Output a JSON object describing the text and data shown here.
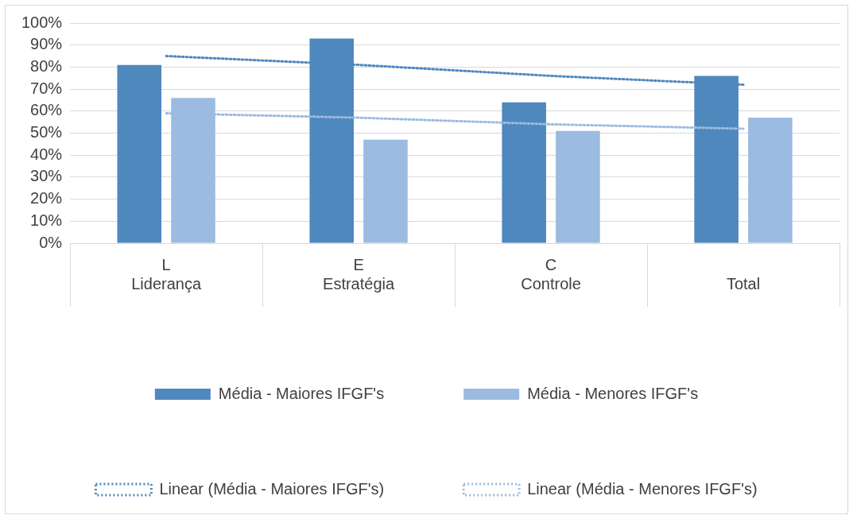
{
  "chart_data": {
    "type": "bar",
    "categories": [
      "L\nLiderança",
      "E\nEstratégia",
      "C\nControle",
      "\nTotal"
    ],
    "series": [
      {
        "name": "Média - Maiores IFGF's",
        "color": "#4f88bd",
        "values": [
          81,
          93,
          64,
          76
        ]
      },
      {
        "name": "Média - Menores IFGF's",
        "color": "#9bbbe0",
        "values": [
          66,
          47,
          51,
          57
        ]
      },
      {
        "name": "Linear (Média - Maiores IFGF's)",
        "type": "line",
        "line_style": "dotted",
        "color": "#4f88bd",
        "values": [
          85,
          81,
          76,
          72
        ]
      },
      {
        "name": "Linear (Média - Menores IFGF's)",
        "type": "line",
        "line_style": "dotted",
        "color": "#9bbbe0",
        "values": [
          59,
          57,
          54,
          52
        ]
      }
    ],
    "ylim": [
      0,
      100
    ],
    "yticks": [
      {
        "value": 0,
        "label": "0%"
      },
      {
        "value": 10,
        "label": "10%"
      },
      {
        "value": 20,
        "label": "20%"
      },
      {
        "value": 30,
        "label": "30%"
      },
      {
        "value": 40,
        "label": "40%"
      },
      {
        "value": 50,
        "label": "50%"
      },
      {
        "value": 60,
        "label": "60%"
      },
      {
        "value": 70,
        "label": "70%"
      },
      {
        "value": 80,
        "label": "80%"
      },
      {
        "value": 90,
        "label": "90%"
      },
      {
        "value": 100,
        "label": "100%"
      }
    ],
    "grid": "y",
    "legend": "bottom",
    "marker": "none"
  }
}
